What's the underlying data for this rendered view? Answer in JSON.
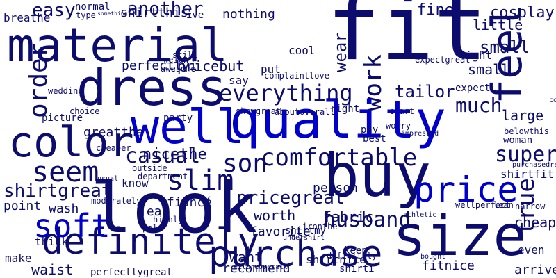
{
  "palette": {
    "background": "#ffffff",
    "dark": "#0c0c6e",
    "mid": "#14149a",
    "bright": "#0000cc"
  },
  "words": [
    "fit",
    "material",
    "quality",
    "dress",
    "look",
    "buy",
    "size",
    "well",
    "color",
    "definitely",
    "purchase",
    "price",
    "feel",
    "comfortable",
    "everything",
    "slim",
    "son",
    "soft",
    "seem",
    "order",
    "shirtgreat",
    "pricegreat",
    "husband",
    "tailor",
    "casual",
    "super",
    "work",
    "much",
    "true",
    "small",
    "little",
    "wear",
    "another",
    "easy",
    "cosplay",
    "shirtthis",
    "nothing",
    "fine",
    "nicethe",
    "greatthe",
    "perfectlyi",
    "pricebut",
    "fabric",
    "recommend",
    "arrive",
    "cheap",
    "want",
    "shirtnice",
    "fitnice",
    "waist",
    "jean",
    "fiancé",
    "worth",
    "definitely",
    "person",
    "favorite",
    "expect",
    "wash",
    "point",
    "thick",
    "make",
    "normal",
    "breathe",
    "light",
    "small",
    "large",
    "shirtfit",
    "woman",
    "best",
    "cool",
    "say",
    "put",
    "right",
    "pay",
    "shirtmy",
    "shirti",
    "keep",
    "even",
    "know",
    "party",
    "moderately",
    "outside",
    "type",
    "something",
    "weigh",
    "awesome",
    "still",
    "ive",
    "lean",
    "narrow",
    "chart",
    "showgreat",
    "aboutoverall",
    "expectgreat",
    "wellperfect",
    "belowthis",
    "purchasedress",
    "comfortablebut",
    "complaintlove",
    "perfectlygreat",
    "athletic",
    "ironthe",
    "worry",
    "impressed",
    "wedding",
    "picture",
    "choice",
    "department",
    "highly",
    "pale",
    "cheaper",
    "usual",
    "undershirt",
    "textureoverall",
    "bought"
  ]
}
